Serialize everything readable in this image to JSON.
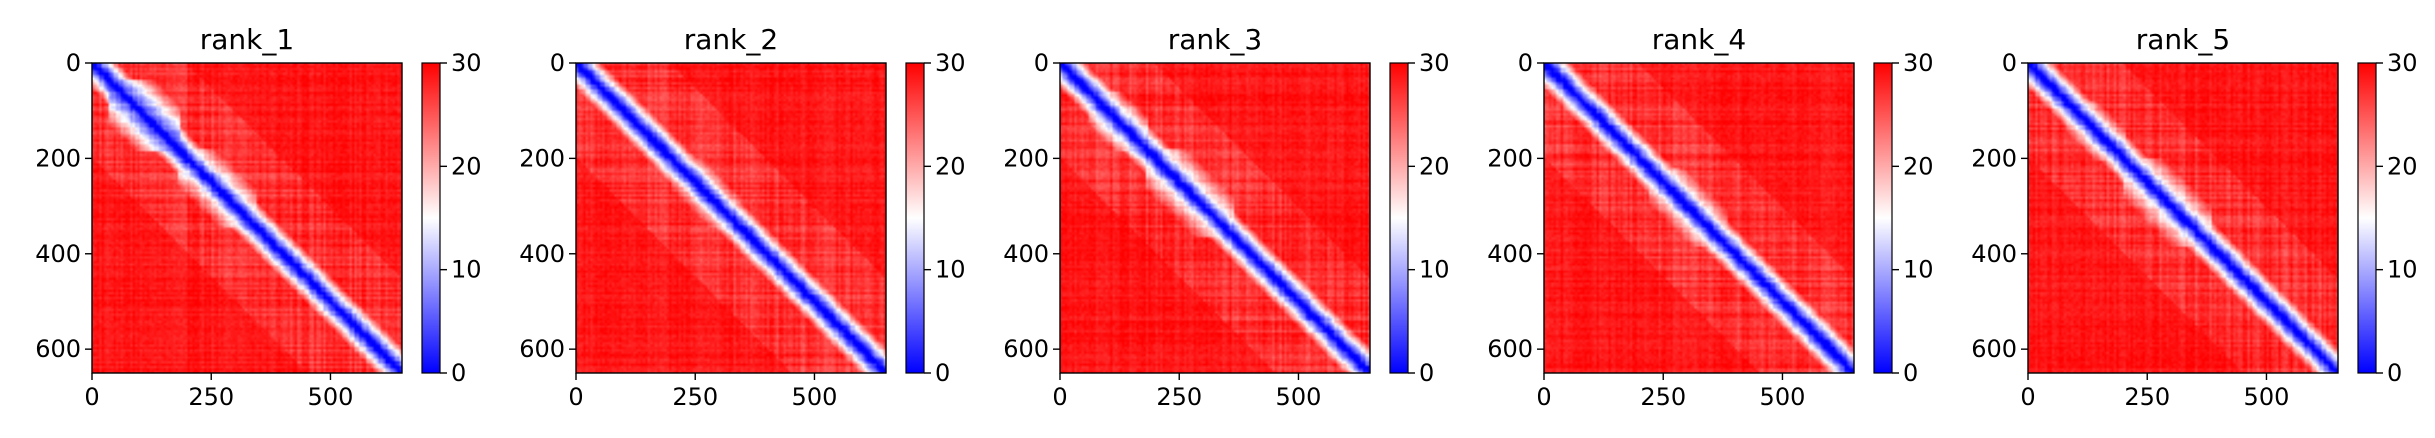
{
  "chart_data": [
    {
      "type": "heatmap",
      "title": "rank_1",
      "matrix_size": 650,
      "xlim": [
        0,
        650
      ],
      "ylim": [
        650,
        0
      ],
      "xticks": [
        0,
        250,
        500
      ],
      "yticks": [
        0,
        200,
        400,
        600
      ],
      "colorbar": {
        "min": 0,
        "max": 30,
        "ticks": [
          0,
          10,
          20,
          30
        ]
      },
      "low_value_blocks": [
        [
          35,
          180,
          5
        ],
        [
          180,
          340,
          11
        ]
      ],
      "hotspots": [
        [
          95,
          95,
          3
        ],
        [
          130,
          120,
          3
        ],
        [
          165,
          160,
          4
        ],
        [
          250,
          245,
          6
        ],
        [
          300,
          300,
          6
        ]
      ]
    },
    {
      "type": "heatmap",
      "title": "rank_2",
      "matrix_size": 650,
      "xlim": [
        0,
        650
      ],
      "ylim": [
        650,
        0
      ],
      "xticks": [
        0,
        250,
        500
      ],
      "yticks": [
        0,
        200,
        400,
        600
      ],
      "colorbar": {
        "min": 0,
        "max": 30,
        "ticks": [
          0,
          10,
          20,
          30
        ]
      },
      "low_value_blocks": [
        [
          130,
          200,
          7
        ],
        [
          200,
          340,
          12
        ]
      ],
      "hotspots": [
        [
          100,
          95,
          5
        ],
        [
          160,
          160,
          3
        ],
        [
          250,
          245,
          6
        ],
        [
          310,
          305,
          6
        ]
      ]
    },
    {
      "type": "heatmap",
      "title": "rank_3",
      "matrix_size": 650,
      "xlim": [
        0,
        650
      ],
      "ylim": [
        650,
        0
      ],
      "xticks": [
        0,
        250,
        500
      ],
      "yticks": [
        0,
        200,
        400,
        600
      ],
      "colorbar": {
        "min": 0,
        "max": 30,
        "ticks": [
          0,
          10,
          20,
          30
        ]
      },
      "low_value_blocks": [
        [
          60,
          180,
          7
        ],
        [
          180,
          360,
          12
        ]
      ],
      "hotspots": [
        [
          100,
          100,
          3
        ],
        [
          125,
          125,
          3
        ],
        [
          170,
          165,
          4
        ],
        [
          360,
          365,
          4
        ]
      ]
    },
    {
      "type": "heatmap",
      "title": "rank_4",
      "matrix_size": 650,
      "xlim": [
        0,
        650
      ],
      "ylim": [
        650,
        0
      ],
      "xticks": [
        0,
        250,
        500
      ],
      "yticks": [
        0,
        200,
        400,
        600
      ],
      "colorbar": {
        "min": 0,
        "max": 30,
        "ticks": [
          0,
          10,
          20,
          30
        ]
      },
      "low_value_blocks": [
        [
          120,
          220,
          9
        ],
        [
          220,
          380,
          12
        ]
      ],
      "hotspots": [
        [
          165,
          165,
          3
        ],
        [
          250,
          250,
          6
        ],
        [
          365,
          365,
          4
        ]
      ]
    },
    {
      "type": "heatmap",
      "title": "rank_5",
      "matrix_size": 650,
      "xlim": [
        0,
        650
      ],
      "ylim": [
        650,
        0
      ],
      "xticks": [
        0,
        250,
        500
      ],
      "yticks": [
        0,
        200,
        400,
        600
      ],
      "colorbar": {
        "min": 0,
        "max": 30,
        "ticks": [
          0,
          10,
          20,
          30
        ]
      },
      "low_value_blocks": [
        [
          80,
          200,
          9
        ],
        [
          200,
          380,
          12
        ]
      ],
      "hotspots": [
        [
          100,
          95,
          4
        ],
        [
          160,
          160,
          3
        ],
        [
          260,
          255,
          6
        ],
        [
          365,
          365,
          4
        ]
      ]
    }
  ]
}
